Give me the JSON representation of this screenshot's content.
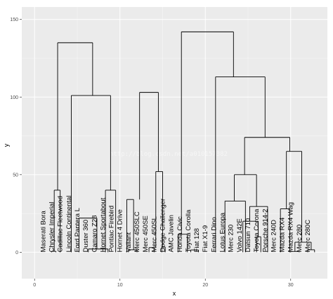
{
  "chart_data": {
    "type": "dendrogram",
    "xlabel": "x",
    "ylabel": "y",
    "xlim": [
      -1.5,
      34.3
    ],
    "ylim": [
      -17,
      158
    ],
    "x_ticks": [
      0,
      10,
      20,
      30
    ],
    "y_ticks": [
      0,
      50,
      100,
      150
    ],
    "grid": true,
    "watermark": "http://blog.csdn.net/a010157382",
    "colors": {
      "panel": "#ebebeb",
      "grid_major": "#ffffff",
      "line": "#000000"
    },
    "labels": [
      "Maserati Bora",
      "Chrysler Imperial",
      "Cadillac Fleetwood",
      "Lincoln Continental",
      "Ford Pantera L",
      "Duster 360",
      "Camaro Z28",
      "Hornet Sportabout",
      "Pontiac Firebird",
      "Hornet 4 Drive",
      "Valiant",
      "Merc 450SLC",
      "Merc 450SE",
      "Merc 450SL",
      "Dodge Challenger",
      "AMC Javelin",
      "Honda Civic",
      "Toyota Corolla",
      "Fiat 128",
      "Fiat X1-9",
      "Ferrari Dino",
      "Lotus Europa",
      "Merc 230",
      "Volvo 142E",
      "Datsun 710",
      "Toyota Corona",
      "Porsche 914-2",
      "Merc 240D",
      "Mazda RX4",
      "Mazda RX4 Wag",
      "Merc 280",
      "Merc 280C"
    ],
    "segments": [
      [
        6.3,
        0,
        6.3,
        2.1
      ],
      [
        8.6,
        0,
        8.6,
        2.1
      ],
      [
        6.3,
        2.1,
        8.6,
        2.1
      ],
      [
        11,
        0,
        11,
        1.6
      ],
      [
        12,
        0,
        12,
        1.6
      ],
      [
        11,
        1.6,
        12,
        1.6
      ],
      [
        18.3,
        0,
        18.3,
        1.5
      ],
      [
        19.2,
        0,
        19.2,
        1.5
      ],
      [
        18.3,
        1.5,
        19.2,
        1.5
      ],
      [
        30,
        0,
        30,
        0.5
      ],
      [
        31,
        0,
        31,
        0.5
      ],
      [
        30,
        0.5,
        31,
        0.5
      ],
      [
        2,
        0,
        2,
        0.6
      ],
      [
        2.5,
        0,
        2.5,
        0.6
      ],
      [
        2,
        0.6,
        2.5,
        0.6
      ],
      [
        14.9,
        0,
        14.9,
        3.4
      ],
      [
        15.3,
        0,
        15.3,
        3.4
      ],
      [
        14.9,
        3.4,
        15.3,
        3.4
      ],
      [
        32,
        0,
        32,
        1.6
      ],
      [
        32.8,
        0,
        32.8,
        1.6
      ],
      [
        32,
        1.6,
        32.8,
        1.6
      ],
      [
        13.4,
        0,
        13.4,
        3
      ],
      [
        14,
        0,
        14,
        3
      ],
      [
        13.4,
        3,
        14,
        3
      ],
      [
        16.8,
        0,
        16.8,
        11.6
      ],
      [
        17.9,
        0,
        17.9,
        11.6
      ],
      [
        16.8,
        11.6,
        17.9,
        11.6
      ],
      [
        3,
        0,
        3,
        40
      ],
      [
        2.3,
        0.6,
        2.3,
        40
      ],
      [
        2.3,
        40,
        3,
        40
      ],
      [
        8.3,
        0,
        8.3,
        40
      ],
      [
        9.5,
        0,
        9.5,
        40
      ],
      [
        8.3,
        40,
        9.5,
        40
      ],
      [
        10.8,
        0,
        10.8,
        34
      ],
      [
        11.6,
        1.6,
        11.6,
        34
      ],
      [
        10.8,
        34,
        11.6,
        34
      ],
      [
        14.2,
        3,
        14.2,
        52
      ],
      [
        15,
        3.4,
        15,
        52
      ],
      [
        14.2,
        52,
        15,
        52
      ],
      [
        12.3,
        34,
        12.3,
        103
      ],
      [
        14.5,
        52,
        14.5,
        103
      ],
      [
        12.3,
        103,
        14.5,
        103
      ],
      [
        5.2,
        0,
        5.2,
        22
      ],
      [
        7.3,
        2.1,
        7.3,
        22
      ],
      [
        5.2,
        22,
        7.3,
        22
      ],
      [
        4.3,
        0,
        4.3,
        101
      ],
      [
        8.9,
        40,
        8.9,
        101
      ],
      [
        4.3,
        101,
        8.9,
        101
      ],
      [
        2.7,
        40,
        2.7,
        135
      ],
      [
        6.8,
        101,
        6.8,
        135
      ],
      [
        2.7,
        135,
        6.8,
        135
      ],
      [
        22.3,
        0,
        22.3,
        33
      ],
      [
        24.7,
        0,
        24.7,
        33
      ],
      [
        22.3,
        33,
        24.7,
        33
      ],
      [
        26,
        0,
        26,
        10
      ],
      [
        26.5,
        0,
        26.5,
        10
      ],
      [
        26,
        10,
        26.5,
        10
      ],
      [
        24.4,
        0,
        24.4,
        20
      ],
      [
        26.2,
        10,
        26.2,
        20
      ],
      [
        24.4,
        20,
        26.2,
        20
      ],
      [
        25.2,
        20,
        25.2,
        29.5
      ],
      [
        27.3,
        0,
        27.3,
        29.5
      ],
      [
        25.2,
        29.5,
        27.3,
        29.5
      ],
      [
        23.4,
        33,
        23.4,
        50
      ],
      [
        26,
        29.5,
        26,
        50
      ],
      [
        23.4,
        50,
        26,
        50
      ],
      [
        28.8,
        0,
        28.8,
        28
      ],
      [
        29.9,
        0,
        29.9,
        28
      ],
      [
        28.8,
        28,
        29.9,
        28
      ],
      [
        30.5,
        0.5,
        30.5,
        6.5
      ],
      [
        32.4,
        1.6,
        32.4,
        6.5
      ],
      [
        30.5,
        6.5,
        32.4,
        6.5
      ],
      [
        29.5,
        28,
        29.5,
        65
      ],
      [
        31.3,
        6.5,
        31.3,
        65
      ],
      [
        29.5,
        65,
        31.3,
        65
      ],
      [
        24.6,
        50,
        24.6,
        74
      ],
      [
        29.9,
        65,
        29.9,
        74
      ],
      [
        24.6,
        74,
        29.9,
        74
      ],
      [
        21.2,
        0,
        21.2,
        113
      ],
      [
        27,
        74,
        27,
        113
      ],
      [
        21.2,
        113,
        27,
        113
      ],
      [
        17.2,
        11.6,
        17.2,
        142
      ],
      [
        23.3,
        113,
        23.3,
        142
      ],
      [
        17.2,
        142,
        23.3,
        142
      ]
    ]
  }
}
